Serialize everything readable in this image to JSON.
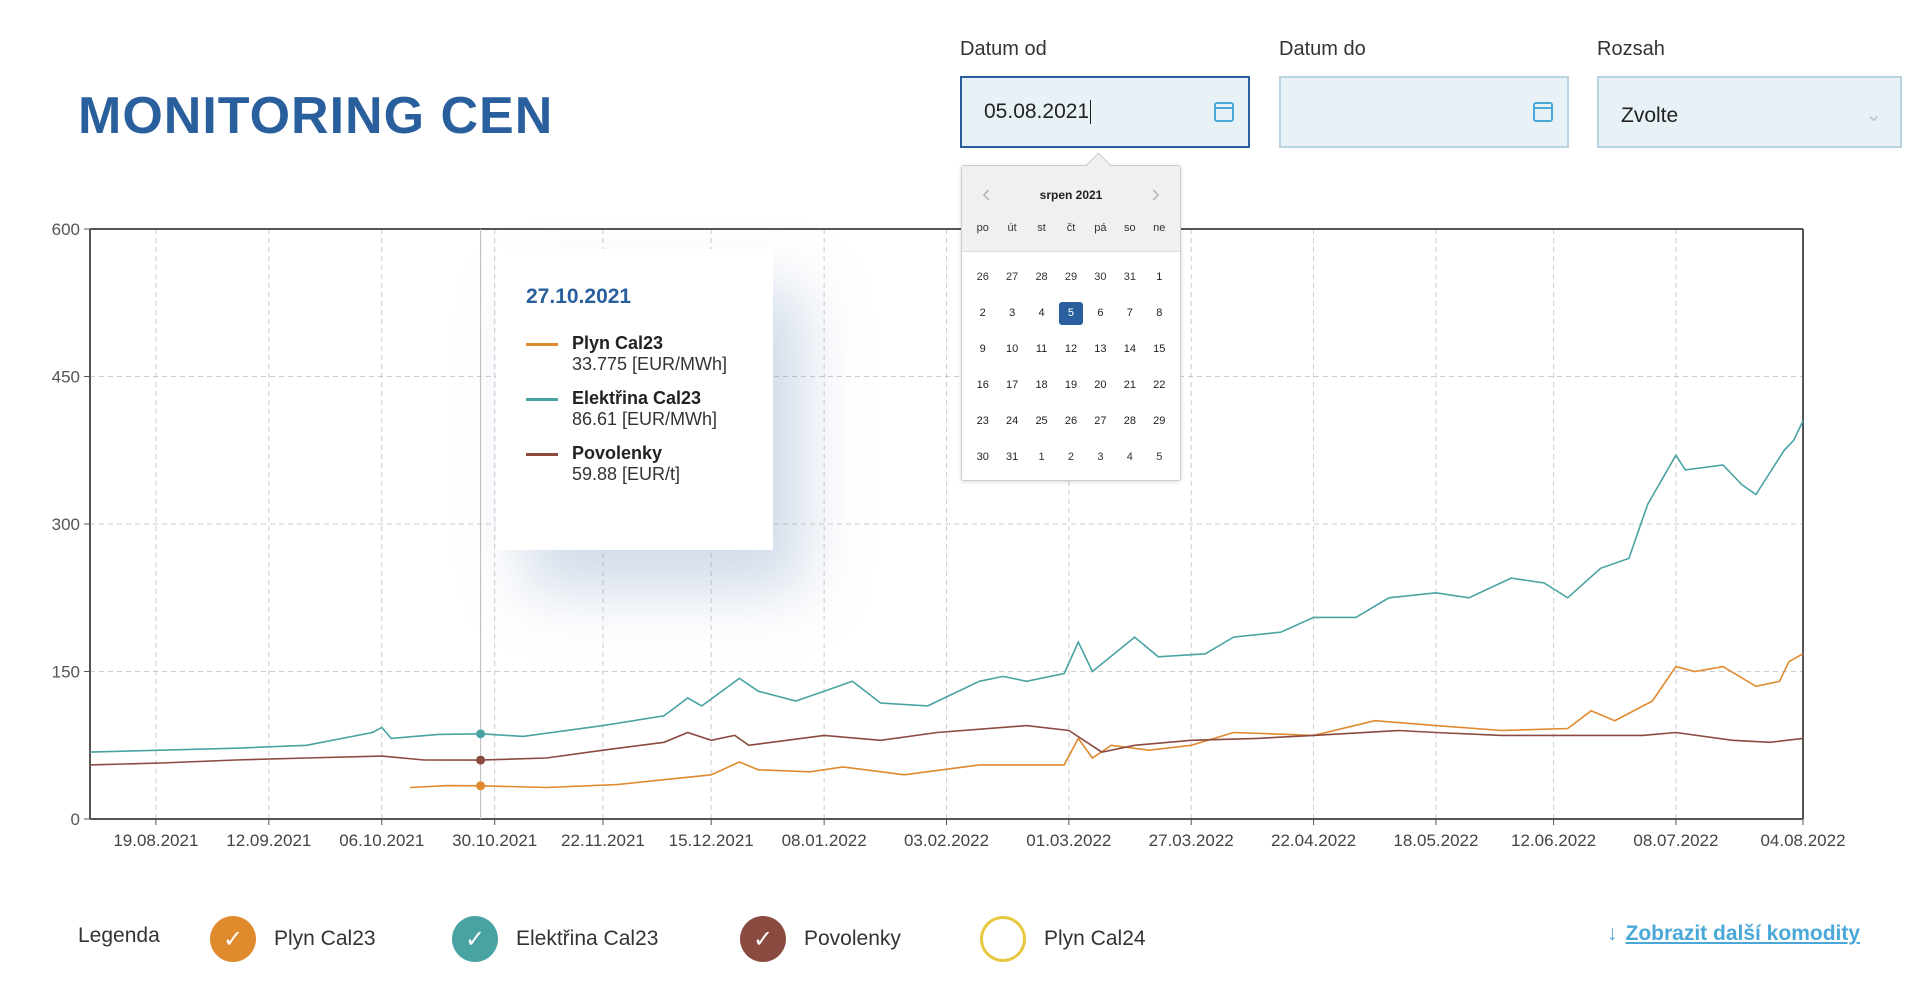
{
  "header": {
    "title": "MONITORING CEN"
  },
  "filters": {
    "date_from": {
      "label": "Datum od",
      "value": "05.08.2021"
    },
    "date_to": {
      "label": "Datum do",
      "value": ""
    },
    "range": {
      "label": "Rozsah",
      "value": "Zvolte"
    }
  },
  "calendar": {
    "month": "srpen 2021",
    "weekdays": [
      "po",
      "út",
      "st",
      "čt",
      "pá",
      "so",
      "ne"
    ],
    "days": [
      "26",
      "27",
      "28",
      "29",
      "30",
      "31",
      "1",
      "2",
      "3",
      "4",
      "5",
      "6",
      "7",
      "8",
      "9",
      "10",
      "11",
      "12",
      "13",
      "14",
      "15",
      "16",
      "17",
      "18",
      "19",
      "20",
      "21",
      "22",
      "23",
      "24",
      "25",
      "26",
      "27",
      "28",
      "29",
      "30",
      "31",
      "1",
      "2",
      "3",
      "4",
      "5"
    ],
    "selected_index": 10
  },
  "tooltip": {
    "date": "27.10.2021",
    "items": [
      {
        "name": "Plyn Cal23",
        "value": "33.775 [EUR/MWh]"
      },
      {
        "name": "Elektřina Cal23",
        "value": "86.61 [EUR/MWh]"
      },
      {
        "name": "Povolenky",
        "value": "59.88 [EUR/t]"
      }
    ]
  },
  "legend": {
    "label": "Legenda",
    "items": [
      {
        "name": "Plyn Cal23",
        "checked": true,
        "color": "#e08a2e"
      },
      {
        "name": "Elektřina Cal23",
        "checked": true,
        "color": "#4aa3a3"
      },
      {
        "name": "Povolenky",
        "checked": true,
        "color": "#8b4a40"
      },
      {
        "name": "Plyn Cal24",
        "checked": false,
        "color": "#e8c840"
      }
    ],
    "more_link": "Zobrazit další komodity"
  },
  "chart_data": {
    "type": "line",
    "xrange": [
      "2021-08-05",
      "2022-08-04"
    ],
    "ylim": [
      0,
      600
    ],
    "yticks": [
      "0",
      "150",
      "300",
      "450",
      "600"
    ],
    "xticks": [
      "19.08.2021",
      "12.09.2021",
      "06.10.2021",
      "30.10.2021",
      "22.11.2021",
      "15.12.2021",
      "08.01.2022",
      "03.02.2022",
      "01.03.2022",
      "27.03.2022",
      "22.04.2022",
      "18.05.2022",
      "12.06.2022",
      "08.07.2022",
      "04.08.2022"
    ],
    "hover_date": "2021-10-27",
    "grid": true,
    "series": [
      {
        "name": "Elektřina Cal23",
        "color": "#4aa3a3",
        "points": [
          [
            "2021-08-05",
            68
          ],
          [
            "2021-08-20",
            70
          ],
          [
            "2021-09-05",
            72
          ],
          [
            "2021-09-20",
            75
          ],
          [
            "2021-10-04",
            88
          ],
          [
            "2021-10-06",
            93
          ],
          [
            "2021-10-08",
            82
          ],
          [
            "2021-10-18",
            86
          ],
          [
            "2021-10-27",
            86.6
          ],
          [
            "2021-11-05",
            84
          ],
          [
            "2021-11-22",
            95
          ],
          [
            "2021-12-05",
            105
          ],
          [
            "2021-12-10",
            123
          ],
          [
            "2021-12-13",
            115
          ],
          [
            "2021-12-21",
            143
          ],
          [
            "2021-12-25",
            130
          ],
          [
            "2022-01-02",
            120
          ],
          [
            "2022-01-08",
            130
          ],
          [
            "2022-01-14",
            140
          ],
          [
            "2022-01-20",
            118
          ],
          [
            "2022-01-30",
            115
          ],
          [
            "2022-02-10",
            140
          ],
          [
            "2022-02-15",
            145
          ],
          [
            "2022-02-20",
            140
          ],
          [
            "2022-02-28",
            148
          ],
          [
            "2022-03-03",
            180
          ],
          [
            "2022-03-06",
            150
          ],
          [
            "2022-03-15",
            185
          ],
          [
            "2022-03-20",
            165
          ],
          [
            "2022-03-30",
            168
          ],
          [
            "2022-04-05",
            185
          ],
          [
            "2022-04-15",
            190
          ],
          [
            "2022-04-22",
            205
          ],
          [
            "2022-05-01",
            205
          ],
          [
            "2022-05-08",
            225
          ],
          [
            "2022-05-18",
            230
          ],
          [
            "2022-05-25",
            225
          ],
          [
            "2022-06-03",
            245
          ],
          [
            "2022-06-10",
            240
          ],
          [
            "2022-06-15",
            225
          ],
          [
            "2022-06-22",
            255
          ],
          [
            "2022-06-28",
            265
          ],
          [
            "2022-07-02",
            320
          ],
          [
            "2022-07-08",
            370
          ],
          [
            "2022-07-10",
            355
          ],
          [
            "2022-07-18",
            360
          ],
          [
            "2022-07-22",
            340
          ],
          [
            "2022-07-25",
            330
          ],
          [
            "2022-07-31",
            375
          ],
          [
            "2022-08-02",
            385
          ],
          [
            "2022-08-04",
            405
          ]
        ]
      },
      {
        "name": "Plyn Cal23",
        "color": "#e08a2e",
        "points": [
          [
            "2021-10-12",
            32
          ],
          [
            "2021-10-20",
            34
          ],
          [
            "2021-10-27",
            33.8
          ],
          [
            "2021-11-10",
            32
          ],
          [
            "2021-11-25",
            35
          ],
          [
            "2021-12-05",
            40
          ],
          [
            "2021-12-15",
            45
          ],
          [
            "2021-12-21",
            58
          ],
          [
            "2021-12-25",
            50
          ],
          [
            "2022-01-05",
            48
          ],
          [
            "2022-01-12",
            53
          ],
          [
            "2022-01-25",
            45
          ],
          [
            "2022-02-10",
            55
          ],
          [
            "2022-02-28",
            55
          ],
          [
            "2022-03-03",
            82
          ],
          [
            "2022-03-06",
            62
          ],
          [
            "2022-03-10",
            75
          ],
          [
            "2022-03-18",
            70
          ],
          [
            "2022-03-27",
            75
          ],
          [
            "2022-04-05",
            88
          ],
          [
            "2022-04-22",
            85
          ],
          [
            "2022-05-05",
            100
          ],
          [
            "2022-05-18",
            95
          ],
          [
            "2022-06-01",
            90
          ],
          [
            "2022-06-15",
            92
          ],
          [
            "2022-06-20",
            110
          ],
          [
            "2022-06-25",
            100
          ],
          [
            "2022-07-03",
            120
          ],
          [
            "2022-07-08",
            155
          ],
          [
            "2022-07-12",
            150
          ],
          [
            "2022-07-18",
            155
          ],
          [
            "2022-07-25",
            135
          ],
          [
            "2022-07-30",
            140
          ],
          [
            "2022-08-01",
            160
          ],
          [
            "2022-08-04",
            168
          ]
        ]
      },
      {
        "name": "Povolenky",
        "color": "#8b4a40",
        "points": [
          [
            "2021-08-05",
            55
          ],
          [
            "2021-08-20",
            57
          ],
          [
            "2021-09-05",
            60
          ],
          [
            "2021-09-20",
            62
          ],
          [
            "2021-10-06",
            64
          ],
          [
            "2021-10-15",
            60
          ],
          [
            "2021-10-27",
            59.9
          ],
          [
            "2021-11-10",
            62
          ],
          [
            "2021-11-22",
            70
          ],
          [
            "2021-12-05",
            78
          ],
          [
            "2021-12-10",
            88
          ],
          [
            "2021-12-15",
            80
          ],
          [
            "2021-12-20",
            85
          ],
          [
            "2021-12-23",
            75
          ],
          [
            "2022-01-08",
            85
          ],
          [
            "2022-01-20",
            80
          ],
          [
            "2022-02-01",
            88
          ],
          [
            "2022-02-20",
            95
          ],
          [
            "2022-03-01",
            90
          ],
          [
            "2022-03-08",
            68
          ],
          [
            "2022-03-15",
            75
          ],
          [
            "2022-03-27",
            80
          ],
          [
            "2022-04-10",
            82
          ],
          [
            "2022-04-22",
            85
          ],
          [
            "2022-05-10",
            90
          ],
          [
            "2022-05-18",
            88
          ],
          [
            "2022-06-01",
            85
          ],
          [
            "2022-06-12",
            85
          ],
          [
            "2022-07-01",
            85
          ],
          [
            "2022-07-08",
            88
          ],
          [
            "2022-07-20",
            80
          ],
          [
            "2022-07-28",
            78
          ],
          [
            "2022-08-04",
            82
          ]
        ]
      }
    ]
  }
}
